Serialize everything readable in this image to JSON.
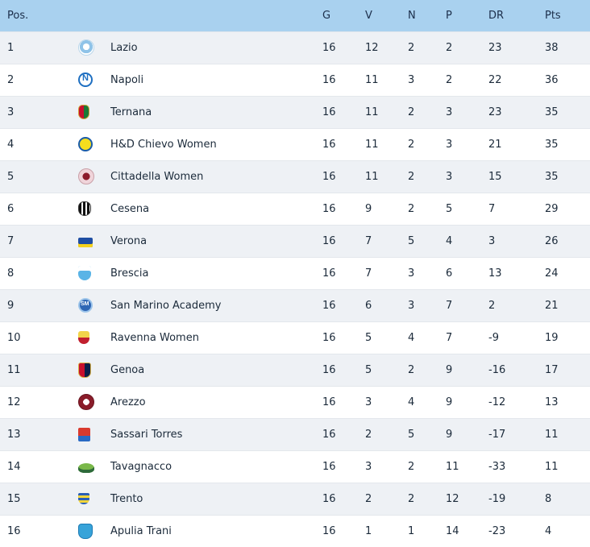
{
  "header": {
    "pos": "Pos.",
    "logo": "",
    "team": "",
    "g": "G",
    "v": "V",
    "n": "N",
    "p": "P",
    "dr": "DR",
    "pts": "Pts"
  },
  "rows": [
    {
      "pos": "1",
      "team": "Lazio",
      "logo_icon": "lazio-crest-icon",
      "g": "16",
      "v": "12",
      "n": "2",
      "p": "2",
      "dr": "23",
      "pts": "38"
    },
    {
      "pos": "2",
      "team": "Napoli",
      "logo_icon": "napoli-crest-icon",
      "g": "16",
      "v": "11",
      "n": "3",
      "p": "2",
      "dr": "22",
      "pts": "36"
    },
    {
      "pos": "3",
      "team": "Ternana",
      "logo_icon": "ternana-crest-icon",
      "g": "16",
      "v": "11",
      "n": "2",
      "p": "3",
      "dr": "23",
      "pts": "35"
    },
    {
      "pos": "4",
      "team": "H&D Chievo Women",
      "logo_icon": "chievo-crest-icon",
      "g": "16",
      "v": "11",
      "n": "2",
      "p": "3",
      "dr": "21",
      "pts": "35"
    },
    {
      "pos": "5",
      "team": "Cittadella Women",
      "logo_icon": "cittadella-crest-icon",
      "g": "16",
      "v": "11",
      "n": "2",
      "p": "3",
      "dr": "15",
      "pts": "35"
    },
    {
      "pos": "6",
      "team": "Cesena",
      "logo_icon": "cesena-crest-icon",
      "g": "16",
      "v": "9",
      "n": "2",
      "p": "5",
      "dr": "7",
      "pts": "29"
    },
    {
      "pos": "7",
      "team": "Verona",
      "logo_icon": "verona-crest-icon",
      "g": "16",
      "v": "7",
      "n": "5",
      "p": "4",
      "dr": "3",
      "pts": "26"
    },
    {
      "pos": "8",
      "team": "Brescia",
      "logo_icon": "brescia-crest-icon",
      "g": "16",
      "v": "7",
      "n": "3",
      "p": "6",
      "dr": "13",
      "pts": "24"
    },
    {
      "pos": "9",
      "team": "San Marino Academy",
      "logo_icon": "san-marino-crest-icon",
      "g": "16",
      "v": "6",
      "n": "3",
      "p": "7",
      "dr": "2",
      "pts": "21"
    },
    {
      "pos": "10",
      "team": "Ravenna Women",
      "logo_icon": "ravenna-crest-icon",
      "g": "16",
      "v": "5",
      "n": "4",
      "p": "7",
      "dr": "-9",
      "pts": "19"
    },
    {
      "pos": "11",
      "team": "Genoa",
      "logo_icon": "genoa-crest-icon",
      "g": "16",
      "v": "5",
      "n": "2",
      "p": "9",
      "dr": "-16",
      "pts": "17"
    },
    {
      "pos": "12",
      "team": "Arezzo",
      "logo_icon": "arezzo-crest-icon",
      "g": "16",
      "v": "3",
      "n": "4",
      "p": "9",
      "dr": "-12",
      "pts": "13"
    },
    {
      "pos": "13",
      "team": "Sassari Torres",
      "logo_icon": "sassari-torres-crest-icon",
      "g": "16",
      "v": "2",
      "n": "5",
      "p": "9",
      "dr": "-17",
      "pts": "11"
    },
    {
      "pos": "14",
      "team": "Tavagnacco",
      "logo_icon": "tavagnacco-crest-icon",
      "g": "16",
      "v": "3",
      "n": "2",
      "p": "11",
      "dr": "-33",
      "pts": "11"
    },
    {
      "pos": "15",
      "team": "Trento",
      "logo_icon": "trento-crest-icon",
      "g": "16",
      "v": "2",
      "n": "2",
      "p": "12",
      "dr": "-19",
      "pts": "8"
    },
    {
      "pos": "16",
      "team": "Apulia Trani",
      "logo_icon": "apulia-trani-crest-icon",
      "g": "16",
      "v": "1",
      "n": "1",
      "p": "14",
      "dr": "-23",
      "pts": "4"
    }
  ],
  "colors": {
    "header_bg": "#a9d1ef",
    "row_alt_bg": "#eef1f5",
    "text": "#1b2a3a"
  }
}
